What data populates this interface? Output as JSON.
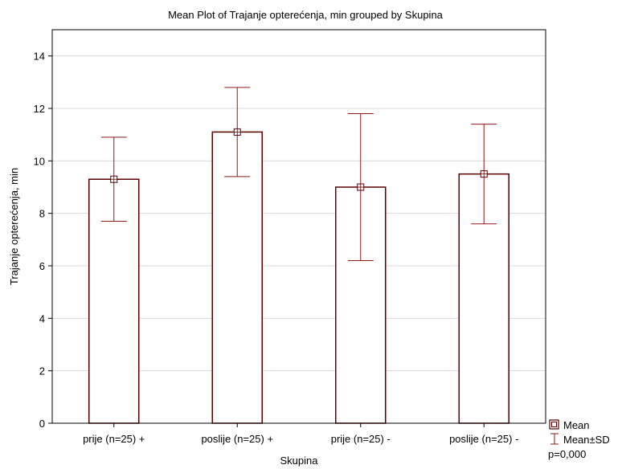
{
  "chart_data": {
    "type": "bar",
    "title": "Mean Plot of Trajanje opterećenja, min grouped by  Skupina",
    "xlabel": "Skupina",
    "ylabel": "Trajanje opterećenja, min",
    "categories": [
      "prije (n=25) +",
      "poslije (n=25) +",
      "prije (n=25) -",
      "poslije (n=25) -"
    ],
    "series": [
      {
        "name": "Mean",
        "values": [
          9.3,
          11.1,
          9.0,
          9.5
        ]
      }
    ],
    "error_bars": {
      "name": "Mean±SD",
      "lower": [
        7.7,
        9.4,
        6.2,
        7.6
      ],
      "upper": [
        10.9,
        12.8,
        11.8,
        11.4
      ]
    },
    "ylim": [
      0,
      15
    ],
    "yticks": [
      0,
      2,
      4,
      6,
      8,
      10,
      12,
      14
    ],
    "grid": true,
    "legend": {
      "placement": "bottom-right",
      "entries": [
        "Mean",
        "Mean±SD"
      ],
      "note": "p=0,000"
    },
    "colors": {
      "bar_edge": "#5a0000",
      "error": "#8b1a1a",
      "grid": "#d9d9d9",
      "axis": "#000000"
    }
  }
}
